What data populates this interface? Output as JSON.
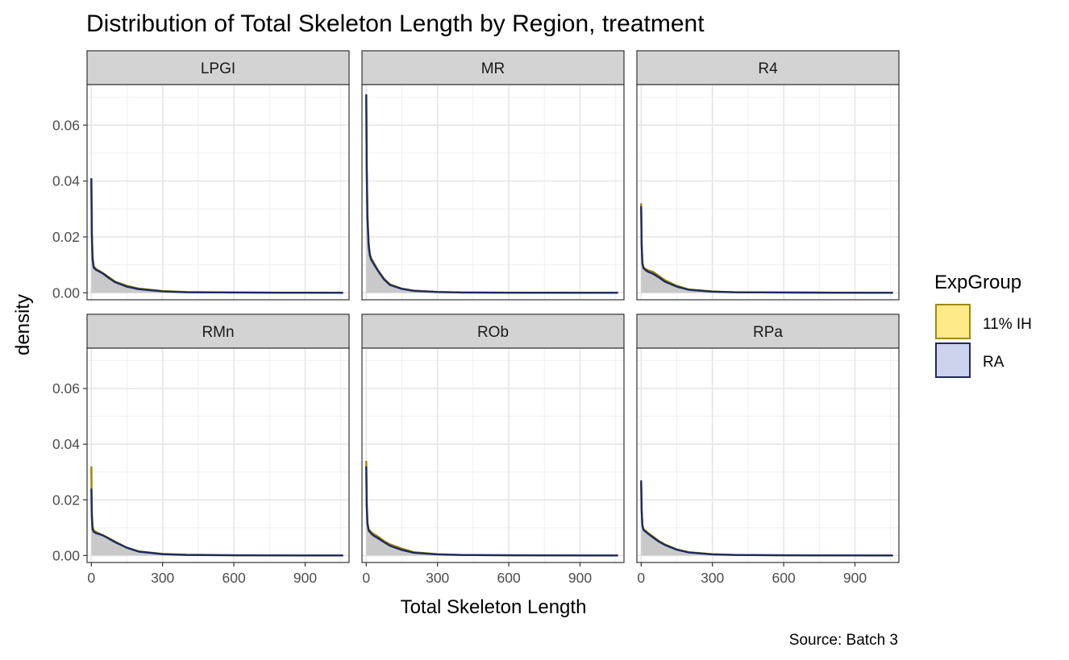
{
  "chart_data": {
    "type": "area",
    "title": "Distribution of Total Skeleton Length by Region, treatment",
    "xlabel": "Total Skeleton Length",
    "ylabel": "density",
    "caption": "Source: Batch 3",
    "xlim": [
      -18,
      1085
    ],
    "ylim": [
      -0.0025,
      0.0745
    ],
    "x_ticks": [
      0,
      300,
      600,
      900
    ],
    "y_ticks": [
      0.0,
      0.02,
      0.04,
      0.06
    ],
    "y_tick_labels": [
      "0.00",
      "0.02",
      "0.04",
      "0.06"
    ],
    "grid": true,
    "legend": {
      "title": "ExpGroup",
      "position": "right",
      "items": [
        {
          "label": "11% IH",
          "fill": "#FFEA8A",
          "stroke": "#A08A00"
        },
        {
          "label": "RA",
          "fill": "#CDD3EC",
          "stroke": "#1F2A5A"
        }
      ]
    },
    "colors": {
      "ih_line": "#9A8400",
      "ra_line": "#1E2B5E",
      "area_fill": "#C9C9C9",
      "strip_fill": "#D3D3D3",
      "grid": "#E6E6E6"
    },
    "panels": [
      {
        "name": "LPGI",
        "series": [
          {
            "name": "11% IH",
            "x": [
              0,
              2,
              5,
              10,
              20,
              30,
              50,
              75,
              100,
              150,
              200,
              300,
              400,
              600,
              800,
              1060
            ],
            "values": [
              0.04,
              0.022,
              0.013,
              0.0095,
              0.0085,
              0.008,
              0.007,
              0.0055,
              0.004,
              0.0025,
              0.0015,
              0.0006,
              0.0003,
              0.0001,
              5e-05,
              0.0
            ]
          },
          {
            "name": "RA",
            "x": [
              0,
              2,
              5,
              10,
              20,
              30,
              50,
              75,
              100,
              150,
              200,
              300,
              400,
              600,
              800,
              1060
            ],
            "values": [
              0.041,
              0.021,
              0.012,
              0.009,
              0.0082,
              0.0078,
              0.0068,
              0.0052,
              0.0038,
              0.0022,
              0.0013,
              0.0005,
              0.0002,
              0.0001,
              5e-05,
              0.0
            ]
          }
        ]
      },
      {
        "name": "MR",
        "series": [
          {
            "name": "11% IH",
            "x": [
              0,
              2,
              5,
              10,
              15,
              20,
              30,
              50,
              75,
              100,
              150,
              200,
              300,
              400,
              600,
              1060
            ],
            "values": [
              0.07,
              0.045,
              0.028,
              0.018,
              0.014,
              0.0125,
              0.011,
              0.008,
              0.005,
              0.003,
              0.0015,
              0.0008,
              0.0003,
              0.0001,
              5e-05,
              0.0
            ]
          },
          {
            "name": "RA",
            "x": [
              0,
              2,
              5,
              10,
              15,
              20,
              30,
              50,
              75,
              100,
              150,
              200,
              300,
              400,
              600,
              1060
            ],
            "values": [
              0.071,
              0.044,
              0.027,
              0.017,
              0.0135,
              0.012,
              0.0105,
              0.0078,
              0.0048,
              0.0028,
              0.0014,
              0.0007,
              0.0003,
              0.0001,
              5e-05,
              0.0
            ]
          }
        ]
      },
      {
        "name": "R4",
        "series": [
          {
            "name": "11% IH",
            "x": [
              0,
              2,
              5,
              10,
              20,
              30,
              50,
              75,
              100,
              150,
              200,
              300,
              400,
              600,
              800,
              1060
            ],
            "values": [
              0.032,
              0.018,
              0.011,
              0.009,
              0.0085,
              0.008,
              0.0075,
              0.006,
              0.0045,
              0.0025,
              0.0012,
              0.0005,
              0.0002,
              0.0001,
              5e-05,
              0.0
            ]
          },
          {
            "name": "RA",
            "x": [
              0,
              2,
              5,
              10,
              20,
              30,
              50,
              75,
              100,
              150,
              200,
              300,
              400,
              600,
              800,
              1060
            ],
            "values": [
              0.031,
              0.017,
              0.0105,
              0.0088,
              0.008,
              0.0075,
              0.0068,
              0.0055,
              0.004,
              0.0022,
              0.0011,
              0.0004,
              0.0002,
              0.0001,
              5e-05,
              0.0
            ]
          }
        ]
      },
      {
        "name": "RMn",
        "series": [
          {
            "name": "11% IH",
            "x": [
              0,
              2,
              5,
              10,
              20,
              30,
              50,
              75,
              100,
              150,
              200,
              300,
              400,
              600,
              800,
              1060
            ],
            "values": [
              0.032,
              0.016,
              0.0105,
              0.009,
              0.0085,
              0.008,
              0.0072,
              0.0062,
              0.005,
              0.0028,
              0.0015,
              0.0006,
              0.0003,
              0.0001,
              5e-05,
              0.0
            ]
          },
          {
            "name": "RA",
            "x": [
              0,
              2,
              5,
              10,
              20,
              30,
              50,
              75,
              100,
              150,
              200,
              300,
              400,
              600,
              800,
              1060
            ],
            "values": [
              0.024,
              0.014,
              0.0095,
              0.0085,
              0.008,
              0.0078,
              0.0072,
              0.006,
              0.0048,
              0.0028,
              0.0014,
              0.0005,
              0.0002,
              0.0001,
              5e-05,
              0.0
            ]
          }
        ]
      },
      {
        "name": "ROb",
        "series": [
          {
            "name": "11% IH",
            "x": [
              0,
              2,
              5,
              10,
              20,
              30,
              50,
              75,
              100,
              150,
              200,
              300,
              400,
              600,
              800,
              1060
            ],
            "values": [
              0.034,
              0.019,
              0.012,
              0.0095,
              0.0085,
              0.0078,
              0.0068,
              0.0052,
              0.004,
              0.0025,
              0.0012,
              0.0005,
              0.0002,
              0.0001,
              5e-05,
              0.0
            ]
          },
          {
            "name": "RA",
            "x": [
              0,
              2,
              5,
              10,
              20,
              30,
              50,
              75,
              100,
              150,
              200,
              300,
              400,
              600,
              800,
              1060
            ],
            "values": [
              0.032,
              0.018,
              0.0115,
              0.009,
              0.008,
              0.0072,
              0.0062,
              0.0048,
              0.0035,
              0.002,
              0.001,
              0.0004,
              0.0002,
              0.0001,
              5e-05,
              0.0
            ]
          }
        ]
      },
      {
        "name": "RPa",
        "series": [
          {
            "name": "11% IH",
            "x": [
              0,
              2,
              5,
              10,
              20,
              30,
              50,
              75,
              100,
              150,
              200,
              300,
              400,
              600,
              800,
              1060
            ],
            "values": [
              0.026,
              0.016,
              0.011,
              0.0095,
              0.0088,
              0.008,
              0.0068,
              0.0052,
              0.004,
              0.0022,
              0.0012,
              0.0005,
              0.0002,
              0.0001,
              5e-05,
              0.0
            ]
          },
          {
            "name": "RA",
            "x": [
              0,
              2,
              5,
              10,
              20,
              30,
              50,
              75,
              100,
              150,
              200,
              300,
              400,
              600,
              800,
              1060
            ],
            "values": [
              0.027,
              0.0165,
              0.0108,
              0.0092,
              0.0085,
              0.0078,
              0.0065,
              0.005,
              0.0038,
              0.0021,
              0.0011,
              0.0004,
              0.0002,
              0.0001,
              5e-05,
              0.0
            ]
          }
        ]
      }
    ]
  }
}
